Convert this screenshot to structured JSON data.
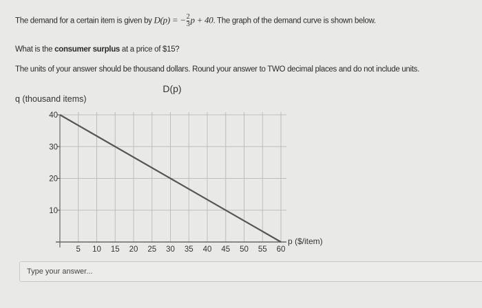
{
  "question": {
    "line1_prefix": "The demand for a certain item is given by ",
    "function_lhs": "D(p) = −",
    "frac_num": "2",
    "frac_den": "3",
    "function_rhs": "p + 40",
    "line1_suffix": ". The graph of the demand curve is shown below.",
    "line2_prefix": "What is the ",
    "line2_bold": "consumer surplus",
    "line2_suffix": " at a price of $15?",
    "line3": "The units of your answer should be thousand dollars. Round your answer to TWO decimal places and do not include units."
  },
  "answer": {
    "placeholder": "Type your answer...",
    "value": ""
  },
  "colors": {
    "line": "#555555",
    "grid": "#bdbdbd",
    "background": "#e9e9e7"
  },
  "chart_data": {
    "type": "line",
    "title": "D(p)",
    "xlabel": "p ($/item)",
    "ylabel": "q (thousand items)",
    "xlim": [
      0,
      60
    ],
    "ylim": [
      0,
      40
    ],
    "xticks": [
      5,
      10,
      15,
      20,
      25,
      30,
      35,
      40,
      45,
      50,
      55,
      60
    ],
    "yticks": [
      10,
      20,
      30,
      40
    ],
    "grid": true,
    "series": [
      {
        "x": [
          0,
          60
        ],
        "y": [
          40,
          0
        ]
      }
    ]
  }
}
